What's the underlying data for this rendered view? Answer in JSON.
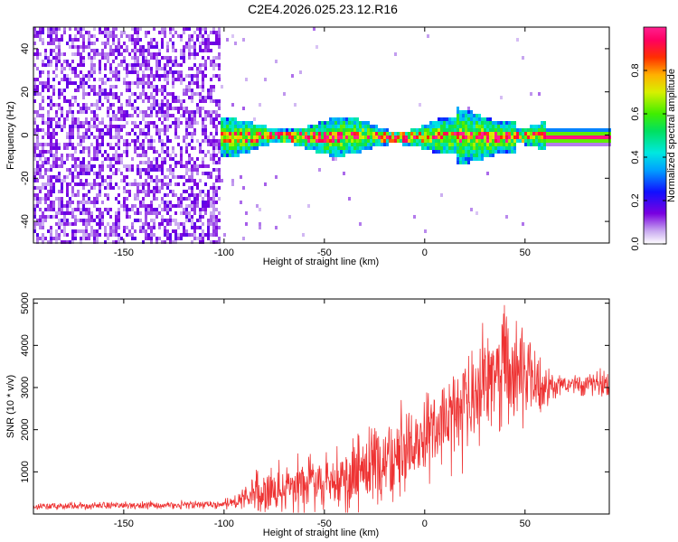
{
  "title": "C2E4.2026.025.23.12.R16",
  "chart_data": [
    {
      "type": "heatmap",
      "title": "C2E4.2026.025.23.12.R16",
      "xlabel": "Height of straight line (km)",
      "ylabel": "Frequency (Hz)",
      "xlim": [
        -195,
        92
      ],
      "ylim": [
        -50,
        50
      ],
      "xticks": [
        -150,
        -100,
        -50,
        0,
        50
      ],
      "yticks": [
        -40,
        -20,
        0,
        20,
        40
      ],
      "colorbar": {
        "label": "Normalized spectral amplitude",
        "range": [
          0,
          1
        ],
        "ticks": [
          0.0,
          0.2,
          0.4,
          0.6,
          0.8
        ],
        "tick_labels": [
          "0.0",
          "0.2",
          "0.4",
          "0.6",
          "0.8"
        ],
        "colormap": "rainbow (white-violet-blue-cyan-green-yellow-red-magenta)",
        "position": "right"
      },
      "regions": [
        {
          "x": [
            -195,
            -103
          ],
          "description": "broadband noise, amplitude ~0.05-0.15"
        },
        {
          "x": [
            -103,
            60
          ],
          "center_hz": 0,
          "halfwidth_hz": 6,
          "peak_amplitude": 0.9
        },
        {
          "x": [
            60,
            92
          ],
          "center_hz": 0,
          "halfwidth_hz": 2,
          "peak_amplitude": 1.0
        }
      ]
    },
    {
      "type": "line",
      "xlabel": "Height of straight line (km)",
      "ylabel": "SNR (10 * v/v)",
      "xlim": [
        -195,
        92
      ],
      "ylim": [
        0,
        5100
      ],
      "xticks": [
        -150,
        -100,
        -50,
        0,
        50
      ],
      "yticks": [
        1000,
        2000,
        3000,
        4000,
        5000
      ],
      "color": "#ee3333",
      "series": [
        {
          "envelope": {
            "x": [
              -195,
              -100,
              -92,
              -85,
              -75,
              -60,
              -50,
              -40,
              -30,
              -20,
              -10,
              0,
              10,
              20,
              30,
              40,
              50,
              60,
              70,
              80,
              92
            ],
            "mean": [
              180,
              230,
              350,
              480,
              600,
              700,
              800,
              900,
              1100,
              1350,
              1600,
              1900,
              2300,
              2500,
              3000,
              3500,
              3300,
              3000,
              3050,
              3100,
              3150
            ],
            "spread": [
              80,
              100,
              250,
              500,
              600,
              650,
              700,
              750,
              900,
              1000,
              1100,
              1100,
              1200,
              1300,
              1400,
              1500,
              1100,
              500,
              200,
              250,
              400
            ]
          }
        }
      ]
    }
  ]
}
